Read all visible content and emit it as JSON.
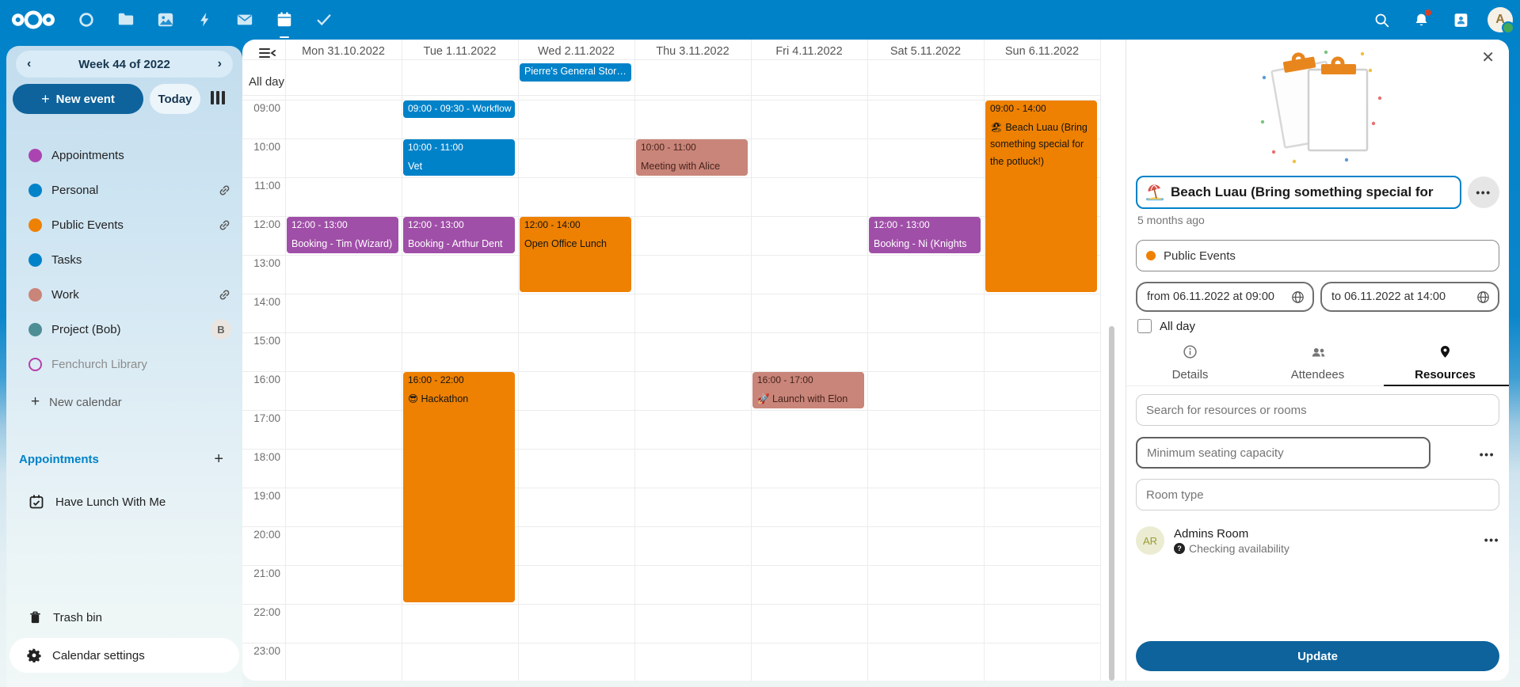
{
  "header": {
    "app_icons": [
      "nextcloud-logo",
      "dashboard",
      "files",
      "photos",
      "activity",
      "mail",
      "calendar",
      "tasks"
    ],
    "active_app": "calendar",
    "right_icons": [
      "search",
      "notifications",
      "contacts",
      "avatar"
    ],
    "avatar_initial": "A",
    "brand_color": "#0082c9"
  },
  "sidebar": {
    "week_label": "Week 44 of 2022",
    "prev_chevron": "‹",
    "next_chevron": "›",
    "new_event_label": "New event",
    "today_label": "Today",
    "calendars": [
      {
        "label": "Appointments",
        "color": "#ab44b0",
        "trailing": "none"
      },
      {
        "label": "Personal",
        "color": "#0082c9",
        "trailing": "link"
      },
      {
        "label": "Public Events",
        "color": "#ee8102",
        "trailing": "link"
      },
      {
        "label": "Tasks",
        "color": "#0082c9",
        "trailing": "none"
      },
      {
        "label": "Work",
        "color": "#c98579",
        "trailing": "link"
      },
      {
        "label": "Project (Bob)",
        "color": "#4d8e94",
        "trailing": "avatar",
        "avatar_letter": "B"
      },
      {
        "label": "Fenchurch Library",
        "color": "#b83daa",
        "outline": true,
        "muted": true,
        "trailing": "none"
      }
    ],
    "new_calendar_label": "New calendar",
    "appointments_header": "Appointments",
    "appointment_items": [
      "Have Lunch With Me"
    ],
    "trash_label": "Trash bin",
    "settings_label": "Calendar settings"
  },
  "calendar": {
    "all_day_label": "All day",
    "days": [
      "Mon 31.10.2022",
      "Tue 1.11.2022",
      "Wed 2.11.2022",
      "Thu 3.11.2022",
      "Fri 4.11.2022",
      "Sat 5.11.2022",
      "Sun 6.11.2022"
    ],
    "times": [
      "09:00",
      "10:00",
      "11:00",
      "12:00",
      "13:00",
      "14:00",
      "15:00",
      "16:00",
      "17:00",
      "18:00",
      "19:00",
      "20:00",
      "21:00",
      "22:00",
      "23:00"
    ],
    "all_day_event": {
      "day": 2,
      "label": "Pierre's General Stor…",
      "color": "blue"
    },
    "events": [
      {
        "day": 1,
        "start": 9,
        "end": 9.5,
        "single_line": "09:00 - 09:30 - Workflow",
        "color": "blue"
      },
      {
        "day": 1,
        "start": 10,
        "end": 11,
        "time": "10:00 - 11:00",
        "title": "Vet",
        "color": "blue"
      },
      {
        "day": 3,
        "start": 10,
        "end": 11,
        "time": "10:00 - 11:00",
        "title": "Meeting with Alice",
        "color": "salmon"
      },
      {
        "day": 0,
        "start": 12,
        "end": 13,
        "time": "12:00 - 13:00",
        "title": "Booking - Tim (Wizard)",
        "color": "purple"
      },
      {
        "day": 1,
        "start": 12,
        "end": 13,
        "time": "12:00 - 13:00",
        "title": "Booking - Arthur Dent",
        "color": "purple"
      },
      {
        "day": 2,
        "start": 12,
        "end": 14,
        "time": "12:00 - 14:00",
        "title": "Open Office Lunch",
        "color": "orange"
      },
      {
        "day": 5,
        "start": 12,
        "end": 13,
        "time": "12:00 - 13:00",
        "title": "Booking - Ni (Knights",
        "color": "purple"
      },
      {
        "day": 6,
        "start": 9,
        "end": 14,
        "time": "09:00 - 14:00",
        "title": "🏖 Beach Luau (Bring something special for the potluck!)",
        "color": "orange"
      },
      {
        "day": 1,
        "start": 16,
        "end": 22,
        "time": "16:00 - 22:00",
        "title": "😎 Hackathon",
        "color": "orange"
      },
      {
        "day": 4,
        "start": 16,
        "end": 17,
        "time": "16:00 - 17:00",
        "title": "🚀 Launch with Elon",
        "color": "salmon"
      }
    ]
  },
  "panel": {
    "close_glyph": "✕",
    "title_value": "Beach Luau (Bring something special for",
    "title_icon": "beach-umbrella-emoji",
    "actions_glyph": "•••",
    "time_ago": "5 months ago",
    "calendar_select": {
      "label": "Public Events",
      "color": "#ee8102"
    },
    "from_value": "from 06.11.2022 at 09:00",
    "to_value": "to 06.11.2022 at 14:00",
    "all_day_label": "All day",
    "tabs": [
      {
        "label": "Details",
        "icon": "info-icon",
        "active": false
      },
      {
        "label": "Attendees",
        "icon": "attendees-icon",
        "active": false
      },
      {
        "label": "Resources",
        "icon": "location-pin-icon",
        "active": true
      }
    ],
    "search_placeholder": "Search for resources or rooms",
    "capacity_placeholder": "Minimum seating capacity",
    "roomtype_placeholder": "Room type",
    "room": {
      "initials": "AR",
      "name": "Admins Room",
      "status": "Checking availability"
    },
    "update_label": "Update"
  }
}
